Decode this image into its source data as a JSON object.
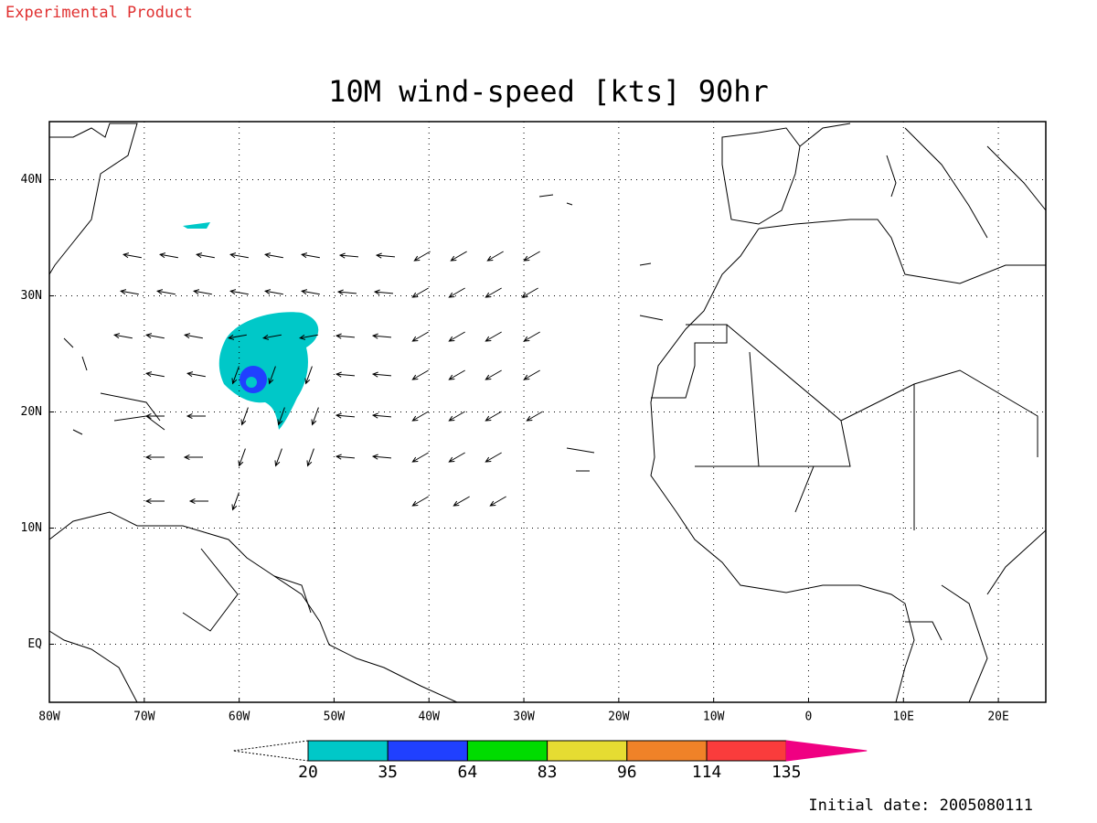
{
  "header": {
    "product": "Experimental Product",
    "title": "10M wind-speed [kts] 90hr"
  },
  "map": {
    "lon_range": [
      -80,
      25
    ],
    "lat_range": [
      -5,
      45
    ],
    "lon_ticks": [
      {
        "value": -80,
        "label": "80W"
      },
      {
        "value": -70,
        "label": "70W"
      },
      {
        "value": -60,
        "label": "60W"
      },
      {
        "value": -50,
        "label": "50W"
      },
      {
        "value": -40,
        "label": "40W"
      },
      {
        "value": -30,
        "label": "30W"
      },
      {
        "value": -20,
        "label": "20W"
      },
      {
        "value": -10,
        "label": "10W"
      },
      {
        "value": 0,
        "label": "0"
      },
      {
        "value": 10,
        "label": "10E"
      },
      {
        "value": 20,
        "label": "20E"
      }
    ],
    "lat_ticks": [
      {
        "value": 0,
        "label": "EQ"
      },
      {
        "value": 10,
        "label": "10N"
      },
      {
        "value": 20,
        "label": "20N"
      },
      {
        "value": 30,
        "label": "30N"
      },
      {
        "value": 40,
        "label": "40N"
      }
    ]
  },
  "colorbar": {
    "levels": [
      20,
      35,
      64,
      83,
      96,
      114,
      135
    ],
    "colors": [
      "#00c8c8",
      "#2040ff",
      "#00dc00",
      "#e6dc32",
      "#f08228",
      "#fa3c3c"
    ],
    "over_color": "#f00082"
  },
  "footer": {
    "initial_date": "Initial date: 2005080111"
  }
}
